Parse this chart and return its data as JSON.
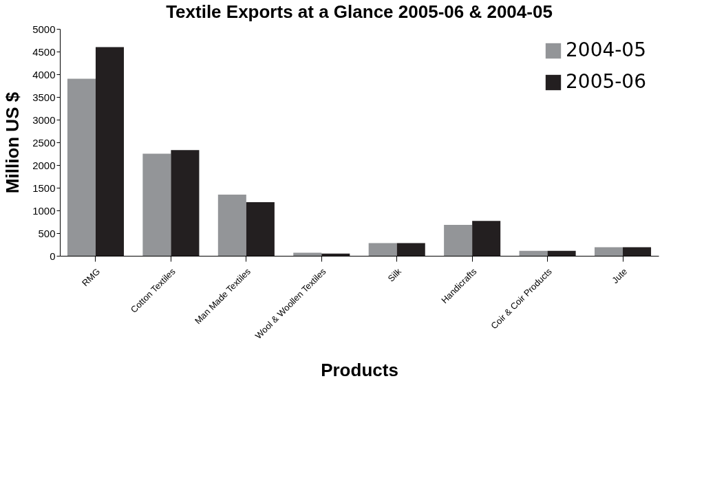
{
  "chart_data": {
    "type": "bar",
    "title": "Textile Exports at a Glance 2005-06 & 2004-05",
    "xlabel": "Products",
    "ylabel": "Million US $",
    "categories": [
      "RMG",
      "Cotton Textiles",
      "Man Made Textiles",
      "Wool & Woollen Textiles",
      "Silk",
      "Handicrafts",
      "Coir & Coir Products",
      "Jute"
    ],
    "series": [
      {
        "name": "2004-05",
        "color": "#939598",
        "values": [
          3900,
          2250,
          1350,
          70,
          280,
          680,
          110,
          190
        ]
      },
      {
        "name": "2005-06",
        "color": "#231f20",
        "values": [
          4600,
          2330,
          1180,
          50,
          280,
          770,
          110,
          190
        ]
      }
    ],
    "ylim": [
      0,
      5000
    ],
    "yticks": [
      0,
      500,
      1000,
      1500,
      2000,
      2500,
      3000,
      3500,
      4000,
      4500,
      5000
    ],
    "grid": false,
    "legend": "top right"
  }
}
